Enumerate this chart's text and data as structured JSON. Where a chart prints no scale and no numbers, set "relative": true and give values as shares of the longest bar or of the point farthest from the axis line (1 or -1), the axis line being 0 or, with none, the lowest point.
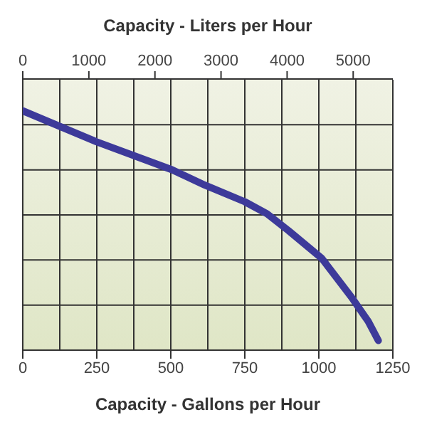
{
  "chart_data": {
    "type": "line",
    "relative": true,
    "xlabel": "Capacity - Gallons per Hour",
    "x2label": "Capacity - Liters per Hour",
    "xlim": [
      0,
      1250
    ],
    "xticks": [
      0,
      250,
      500,
      750,
      1000,
      1250
    ],
    "x2lim": [
      0,
      5600
    ],
    "x2ticks": [
      0,
      1000,
      2000,
      3000,
      4000,
      5000
    ],
    "x": [
      0,
      250,
      504,
      614,
      750,
      825,
      897,
      1009,
      1111,
      1167,
      1201
    ],
    "series": [
      {
        "color": "#3d3a9a",
        "values": [
          1.0,
          0.87,
          0.754,
          0.69,
          0.62,
          0.57,
          0.5,
          0.385,
          0.22,
          0.12,
          0.04
        ]
      }
    ],
    "grid": true,
    "marker": "none",
    "line_style": "solid",
    "legend": false
  }
}
